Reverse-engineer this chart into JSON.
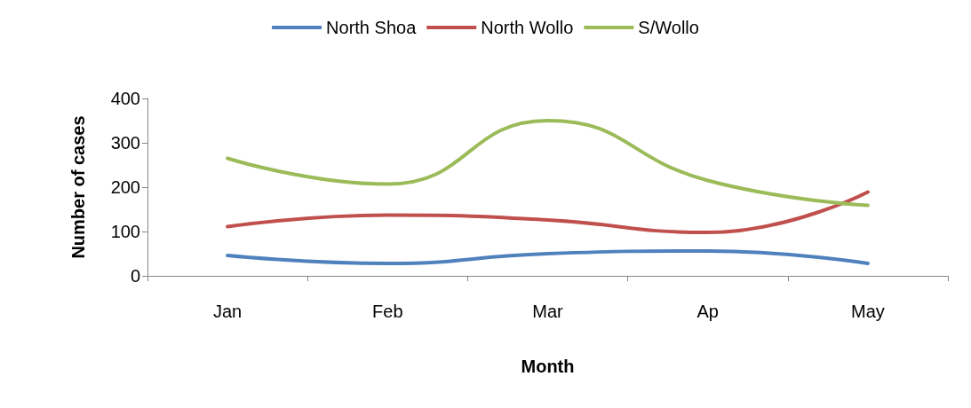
{
  "chart_data": {
    "type": "line",
    "xlabel": "Month",
    "ylabel": "Number of cases",
    "categories": [
      "Jan",
      "Feb",
      "Mar",
      "Ap",
      "May"
    ],
    "series": [
      {
        "name": "North Shoa",
        "color": "#4f81bd",
        "values": [
          46,
          28,
          50,
          56,
          28
        ]
      },
      {
        "name": "North Wollo",
        "color": "#c0504d",
        "values": [
          111,
          137,
          126,
          98,
          189
        ]
      },
      {
        "name": "S/Wollo",
        "color": "#9bbb59",
        "values": [
          265,
          207,
          350,
          215,
          159
        ]
      }
    ],
    "ylim": [
      0,
      400
    ],
    "yticks": [
      0,
      100,
      200,
      300,
      400
    ],
    "grid": false,
    "legend": "top",
    "marker": "none",
    "line_style": "solid"
  }
}
